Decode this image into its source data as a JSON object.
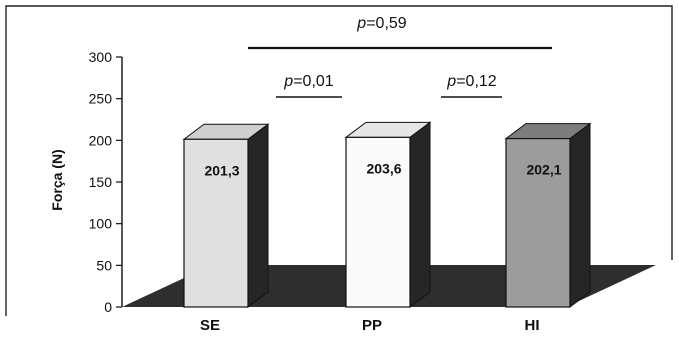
{
  "chart_data": {
    "type": "bar",
    "categories": [
      "SE",
      "PP",
      "HI"
    ],
    "values": [
      201.3,
      203.6,
      202.1
    ],
    "value_labels": [
      "201,3",
      "203,6",
      "202,1"
    ],
    "bar_colors": [
      "#e0e0e0",
      "#fafafa",
      "#9c9c9c"
    ],
    "ylabel": "Força (N)",
    "ylim": [
      0,
      300
    ],
    "yticks": [
      "0",
      "50",
      "100",
      "150",
      "200",
      "250",
      "300"
    ],
    "grid": false,
    "style": "3d",
    "comparisons": [
      {
        "p_symbol": "p",
        "p_value": "=0,59"
      },
      {
        "p_symbol": "p",
        "p_value": "=0,01"
      },
      {
        "p_symbol": "p",
        "p_value": "=0,12"
      }
    ]
  }
}
